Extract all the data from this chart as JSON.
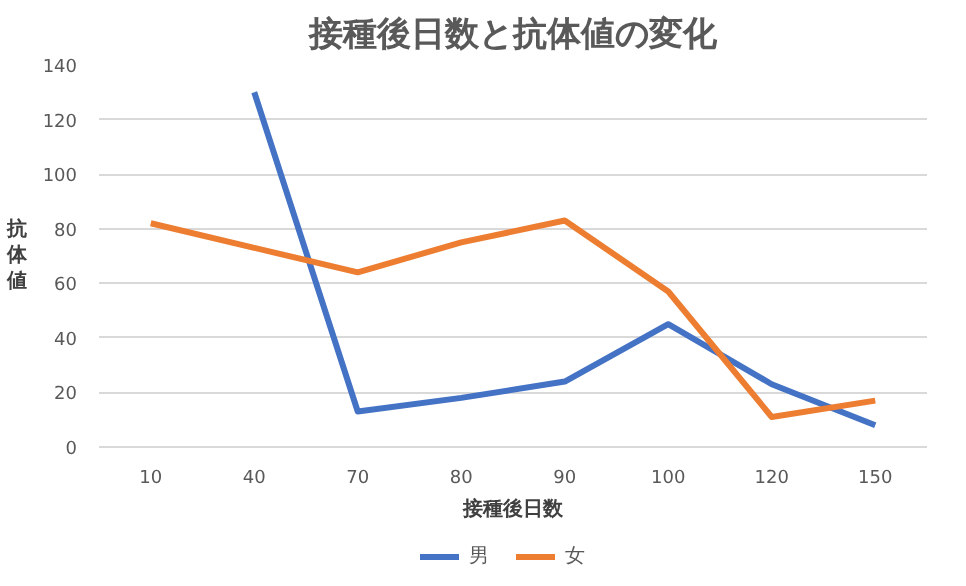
{
  "chart_data": {
    "type": "line",
    "title": "接種後日数と抗体値の変化",
    "xlabel": "接種後日数",
    "ylabel": "抗体値",
    "categories": [
      "10",
      "40",
      "70",
      "80",
      "90",
      "100",
      "120",
      "150"
    ],
    "series": [
      {
        "name": "男",
        "color": "#4472c4",
        "values": [
          null,
          130,
          13,
          18,
          24,
          45,
          23,
          8
        ]
      },
      {
        "name": "女",
        "color": "#ed7d31",
        "values": [
          82,
          73,
          64,
          75,
          83,
          57,
          11,
          17
        ]
      }
    ],
    "ylim": [
      0,
      140
    ],
    "yticks": [
      0,
      20,
      40,
      60,
      80,
      100,
      120,
      140
    ],
    "grid": "y",
    "legend": "bottom",
    "marker": "none",
    "line_style": "solid"
  }
}
